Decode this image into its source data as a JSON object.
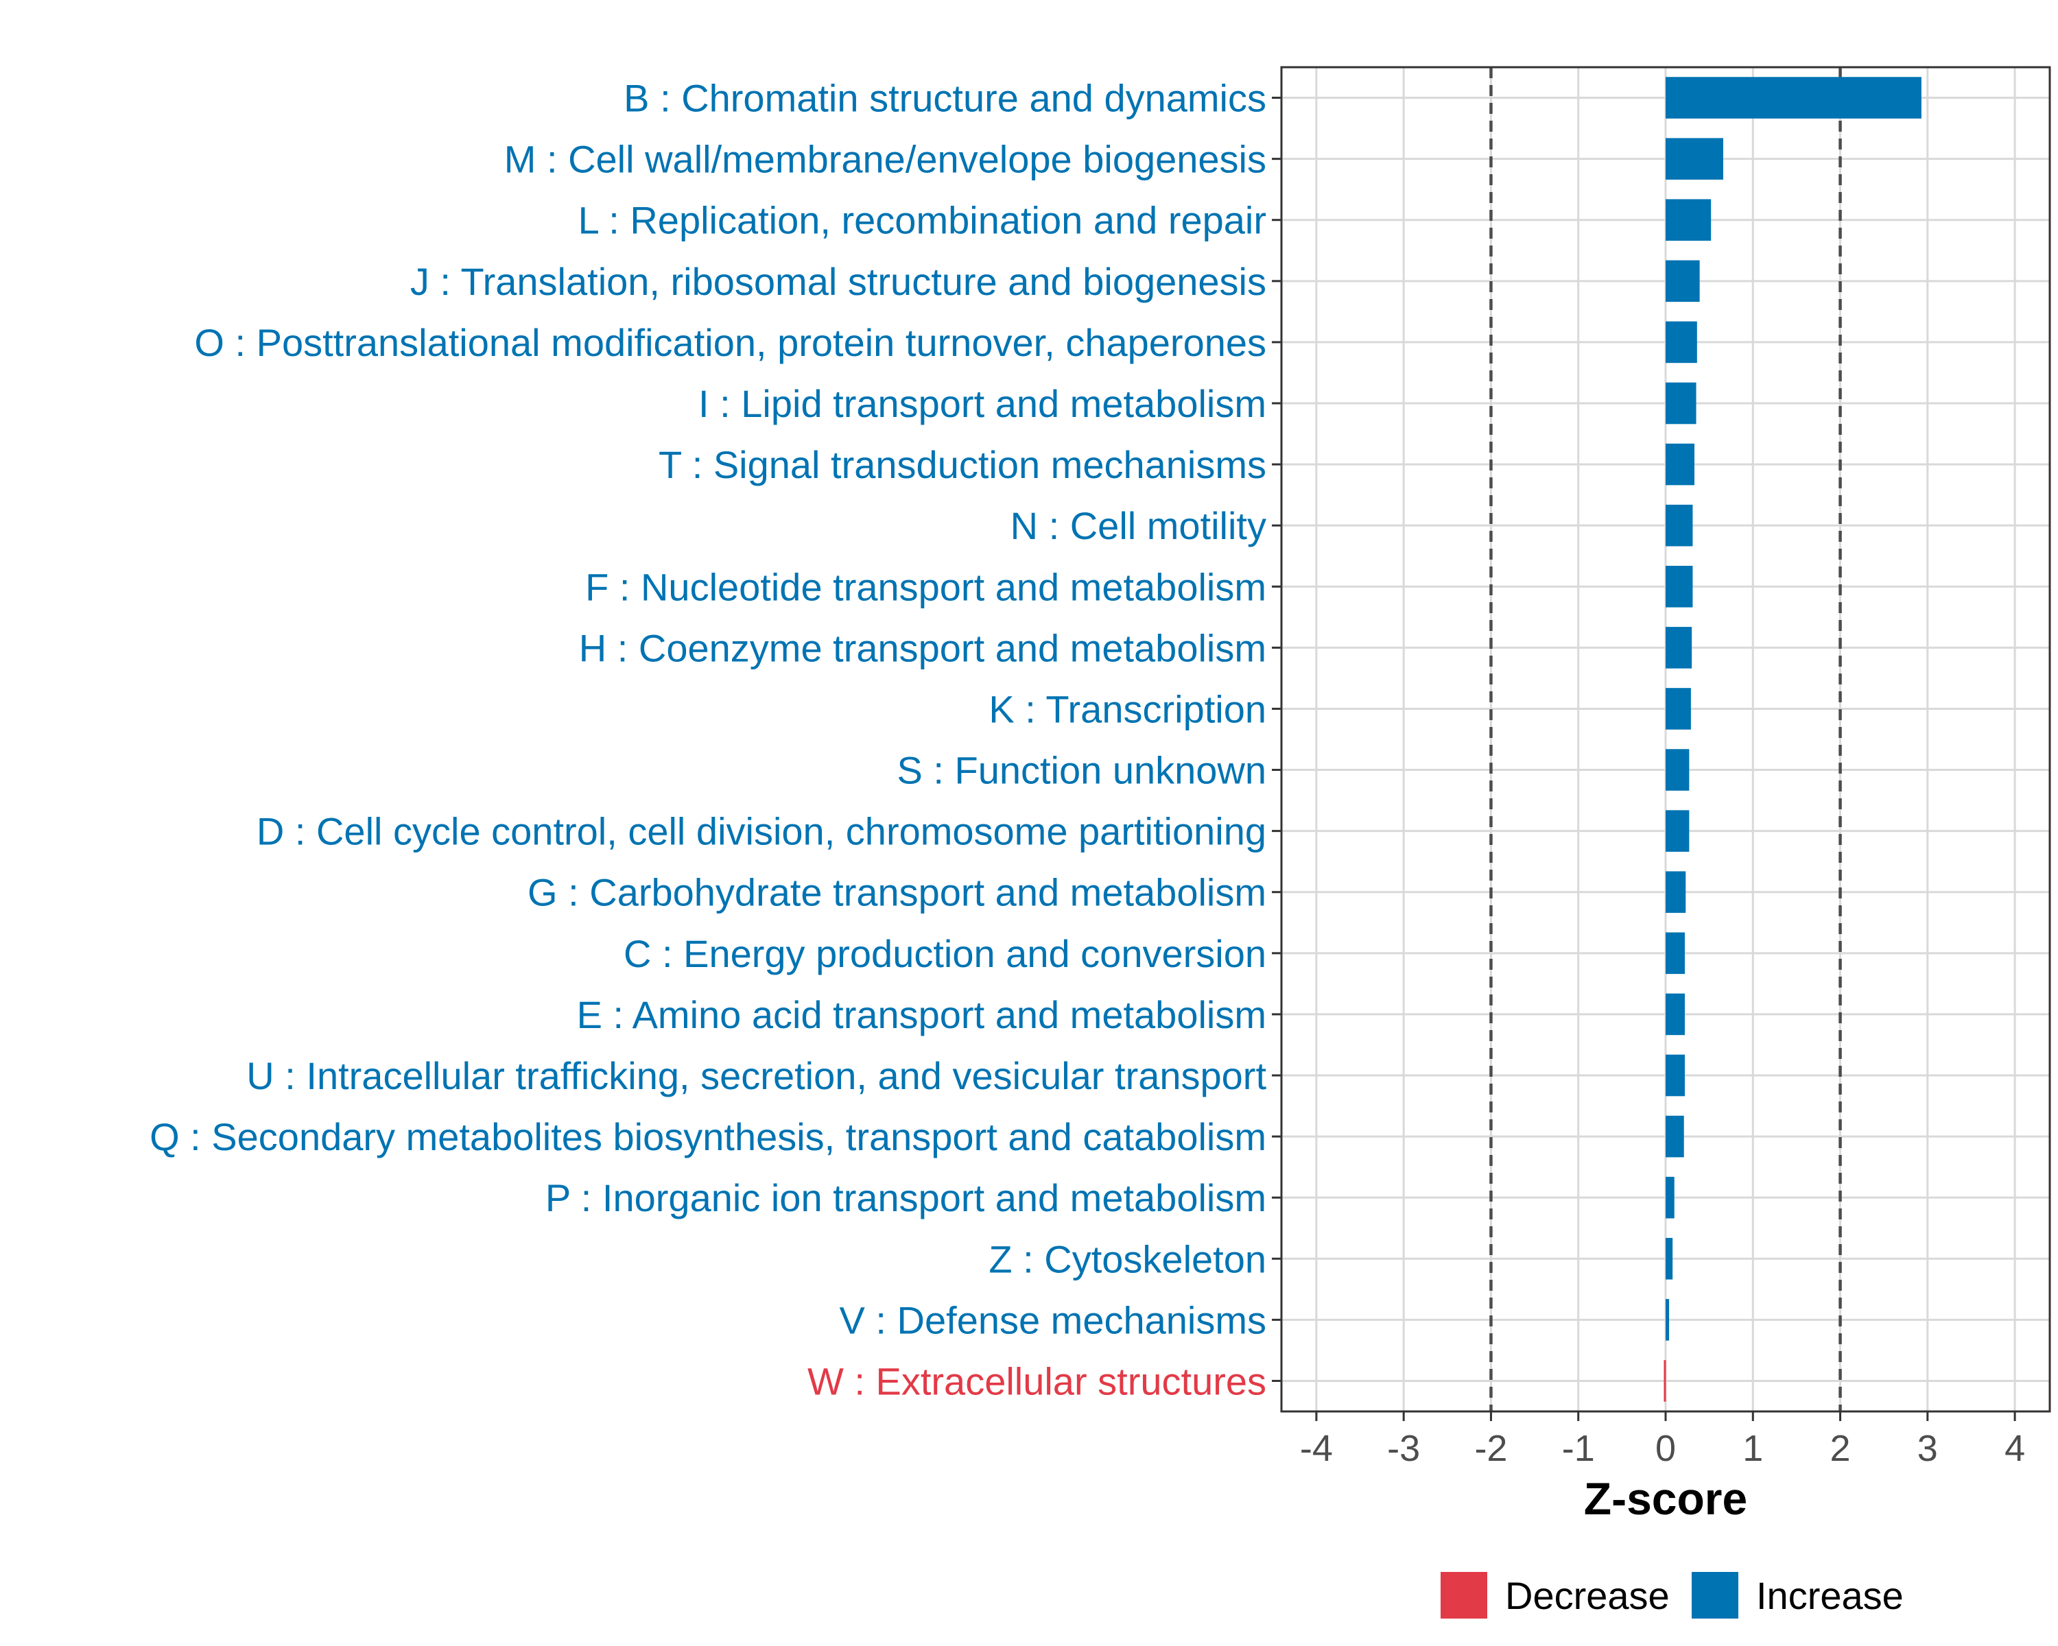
{
  "colors": {
    "increase": "#0073B2",
    "decrease": "#E23A47",
    "grid": "#D9D9D9",
    "axis_text": "#4D4D4D",
    "frame": "#333333",
    "threshold": "#4D4D4D"
  },
  "chart_data": {
    "type": "bar",
    "orientation": "horizontal",
    "title": "",
    "xlabel": "Z-score",
    "ylabel": "",
    "xlim": [
      -4.4,
      4.4
    ],
    "xticks": [
      -4,
      -3,
      -2,
      -1,
      0,
      1,
      2,
      3,
      4
    ],
    "threshold_lines": [
      -2,
      2
    ],
    "grid": true,
    "legend_position": "bottom",
    "legend": [
      {
        "label": "Decrease",
        "color_key": "decrease"
      },
      {
        "label": "Increase",
        "color_key": "increase"
      }
    ],
    "categories": [
      "B : Chromatin structure and dynamics",
      "M : Cell wall/membrane/envelope biogenesis",
      "L : Replication, recombination and repair",
      "J : Translation, ribosomal structure and biogenesis",
      "O : Posttranslational modification, protein turnover, chaperones",
      "I : Lipid transport and metabolism",
      "T : Signal transduction mechanisms",
      "N : Cell motility",
      "F : Nucleotide transport and metabolism",
      "H : Coenzyme transport and metabolism",
      "K : Transcription",
      "S : Function unknown",
      "D : Cell cycle control, cell division, chromosome partitioning",
      "G : Carbohydrate transport and metabolism",
      "C : Energy production and conversion",
      "E : Amino acid transport and metabolism",
      "U : Intracellular trafficking, secretion, and vesicular transport",
      "Q : Secondary metabolites biosynthesis, transport and catabolism",
      "P : Inorganic ion transport and metabolism",
      "Z : Cytoskeleton",
      "V : Defense mechanisms",
      "W : Extracellular structures"
    ],
    "values": [
      2.93,
      0.66,
      0.52,
      0.39,
      0.36,
      0.35,
      0.33,
      0.31,
      0.31,
      0.3,
      0.29,
      0.27,
      0.27,
      0.23,
      0.22,
      0.22,
      0.22,
      0.21,
      0.1,
      0.08,
      0.04,
      -0.02
    ],
    "direction": [
      "Increase",
      "Increase",
      "Increase",
      "Increase",
      "Increase",
      "Increase",
      "Increase",
      "Increase",
      "Increase",
      "Increase",
      "Increase",
      "Increase",
      "Increase",
      "Increase",
      "Increase",
      "Increase",
      "Increase",
      "Increase",
      "Increase",
      "Increase",
      "Increase",
      "Decrease"
    ]
  }
}
